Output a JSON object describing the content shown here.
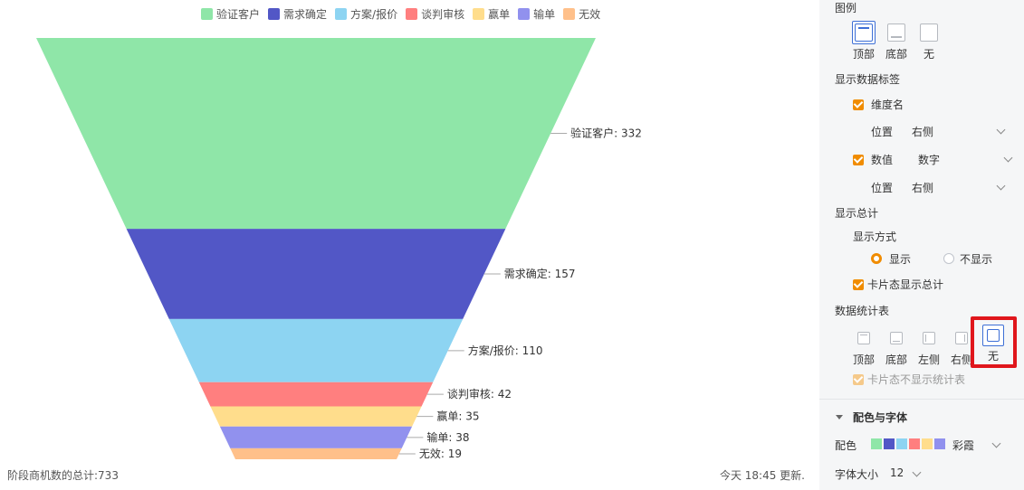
{
  "chart_data": {
    "type": "funnel",
    "categories": [
      "验证客户",
      "需求确定",
      "方案/报价",
      "谈判审核",
      "赢单",
      "输单",
      "无效"
    ],
    "values": [
      332,
      157,
      110,
      42,
      35,
      38,
      19
    ],
    "colors": [
      "#8fe6a8",
      "#5257c6",
      "#8dd4f2",
      "#ff7f7f",
      "#ffdd8c",
      "#9191ee",
      "#ffc08a"
    ],
    "data_labels": [
      "验证客户: 332",
      "需求确定: 157",
      "方案/报价: 110",
      "谈判审核: 42",
      "赢单: 35",
      "输单: 38",
      "无效: 19"
    ],
    "legend_position": "top"
  },
  "footer": {
    "total": "阶段商机数的总计:733",
    "updated": "今天 18:45 更新."
  },
  "panel": {
    "legend": {
      "title": "图例",
      "options": [
        "顶部",
        "底部",
        "无"
      ],
      "selected": "顶部"
    },
    "data_labels": {
      "title": "显示数据标签",
      "dimension_label": "维度名",
      "position_label": "位置",
      "position_value": "右侧",
      "value_label": "数值",
      "value_format": "数字",
      "position2_label": "位置",
      "position2_value": "右侧"
    },
    "total": {
      "title": "显示总计",
      "mode_label": "显示方式",
      "show": "显示",
      "hide": "不显示",
      "card_total": "卡片态显示总计"
    },
    "stats_table": {
      "title": "数据统计表",
      "options": [
        "顶部",
        "底部",
        "左侧",
        "右侧",
        "无"
      ],
      "selected": "无",
      "card_hide": "卡片态不显示统计表"
    },
    "color_font": {
      "title": "配色与字体",
      "color_label": "配色",
      "palette_name": "彩霞",
      "palette_colors": [
        "#8fe6a8",
        "#5257c6",
        "#8dd4f2",
        "#ff7f7f",
        "#ffdd8c",
        "#9191ee"
      ],
      "font_size_label": "字体大小",
      "font_size_value": "12"
    }
  }
}
